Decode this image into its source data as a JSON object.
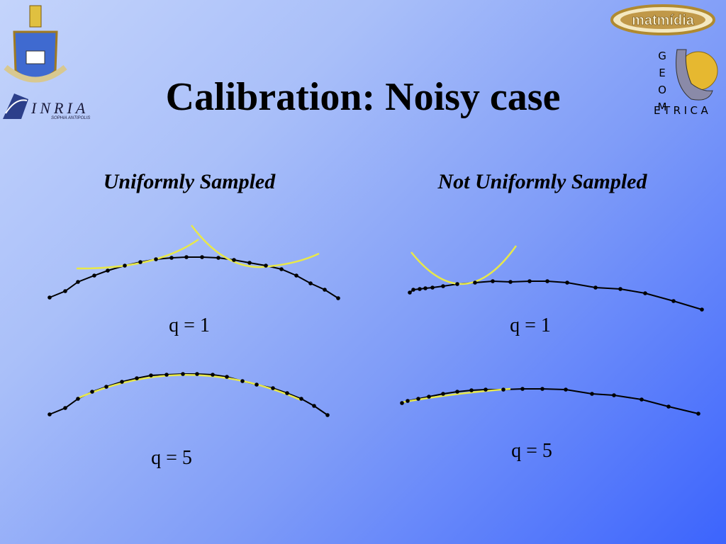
{
  "title": "Calibration: Noisy case",
  "panels": [
    {
      "heading": "Uniformly Sampled",
      "labels": [
        "q = 1",
        "q = 5"
      ]
    },
    {
      "heading": "Not Uniformly Sampled",
      "labels": [
        "q = 1",
        "q = 5"
      ]
    }
  ],
  "logos": {
    "inria": "INRIA",
    "inria_subtitle": "SOPHIA ANTIPOLIS",
    "matmidia": "matmídia",
    "geometrica_column": "GEOM",
    "geometrica_row": "ETRICA"
  }
}
